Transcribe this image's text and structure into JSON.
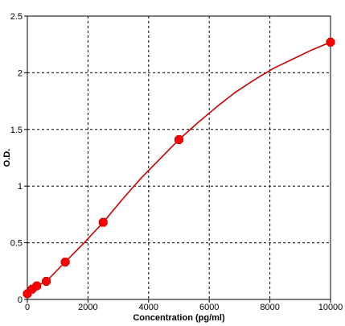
{
  "chart_data": {
    "type": "scatter",
    "title": "",
    "xlabel": "Concentration (pg/ml)",
    "ylabel": "O.D.",
    "xlim": [
      0,
      10000
    ],
    "ylim": [
      0,
      2.5
    ],
    "x_ticks": [
      "0",
      "2000",
      "4000",
      "6000",
      "8000",
      "10000"
    ],
    "y_ticks": [
      "0",
      "0.5",
      "1",
      "1.5",
      "2",
      "2.5"
    ],
    "grid": true,
    "legend": "none",
    "series": [
      {
        "x": [
          0,
          156,
          312,
          625,
          1250,
          2500,
          5000,
          10000
        ],
        "y": [
          0.05,
          0.09,
          0.12,
          0.16,
          0.33,
          0.68,
          1.41,
          2.27
        ]
      }
    ],
    "fit_curve": {
      "x": [
        0,
        78,
        156,
        312,
        625,
        1250,
        1875,
        2500,
        3125,
        3750,
        4375,
        5000,
        5625,
        6250,
        6875,
        7500,
        8125,
        8750,
        9375,
        10000
      ],
      "y": [
        0.05,
        0.07,
        0.09,
        0.12,
        0.16,
        0.33,
        0.5,
        0.68,
        0.88,
        1.07,
        1.24,
        1.41,
        1.56,
        1.7,
        1.83,
        1.94,
        2.04,
        2.12,
        2.2,
        2.27
      ]
    },
    "colors": {
      "series": "#ff0000",
      "curve": "#cc0000",
      "grid": "#000000",
      "axis": "#000000"
    }
  }
}
